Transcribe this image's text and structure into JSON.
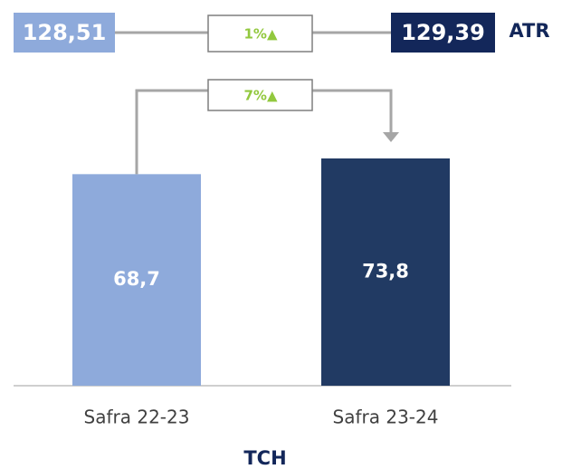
{
  "chart_data": {
    "type": "bar",
    "categories": [
      "Safra 22-23",
      "Safra 23-24"
    ],
    "values": [
      68.7,
      73.8
    ],
    "value_labels": [
      "68,7",
      "73,8"
    ],
    "colors": [
      "#8eaadb",
      "#213a63"
    ],
    "xlabel": "TCH",
    "change_label": "7%▲",
    "atr": {
      "label": "ATR",
      "values": [
        128.51,
        129.39
      ],
      "value_labels": [
        "128,51",
        "129,39"
      ],
      "colors": [
        "#8eaadb",
        "#13275a"
      ],
      "change_label": "1%▲"
    }
  }
}
